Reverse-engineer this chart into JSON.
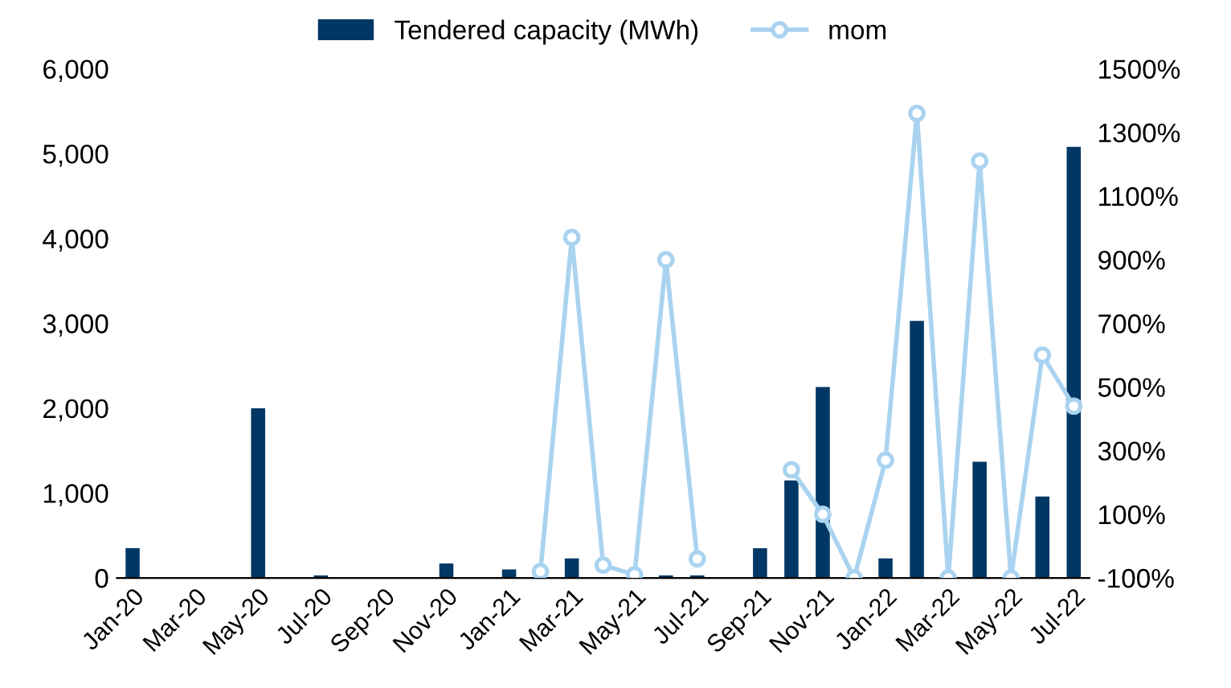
{
  "chart_data": {
    "type": "bar",
    "categories": [
      "Jan-20",
      null,
      "Mar-20",
      null,
      "May-20",
      null,
      "Jul-20",
      null,
      "Sep-20",
      null,
      "Nov-20",
      null,
      "Jan-21",
      null,
      "Mar-21",
      null,
      "May-21",
      null,
      "Jul-21",
      null,
      "Sep-21",
      null,
      "Nov-21",
      null,
      "Jan-22",
      null,
      "Mar-22",
      null,
      "May-22",
      null,
      "Jul-22"
    ],
    "series": [
      {
        "name": "Tendered capacity (MWh)",
        "color": "#003764",
        "values": [
          350,
          0,
          0,
          0,
          2000,
          0,
          30,
          0,
          0,
          0,
          170,
          0,
          100,
          0,
          230,
          0,
          0,
          30,
          30,
          0,
          350,
          1150,
          2250,
          0,
          230,
          3030,
          0,
          1370,
          0,
          960,
          5080
        ]
      },
      {
        "name": "mom",
        "type": "line",
        "axis": "y2",
        "color": "#a9d3f0",
        "marker": "circle",
        "values": [
          null,
          null,
          null,
          null,
          null,
          null,
          null,
          null,
          null,
          null,
          null,
          null,
          null,
          -80,
          970,
          -60,
          -90,
          900,
          -40,
          null,
          null,
          240,
          100,
          -100,
          270,
          1360,
          -100,
          1210,
          -100,
          600,
          440
        ]
      }
    ],
    "ylim": [
      0,
      6000
    ],
    "yticks": [
      0,
      {
        "value": 1000,
        "label": "1,000"
      },
      {
        "value": 2000,
        "label": "2,000"
      },
      {
        "value": 3000,
        "label": "3,000"
      },
      {
        "value": 4000,
        "label": "4,000"
      },
      {
        "value": 5000,
        "label": "5,000"
      },
      {
        "value": 6000,
        "label": "6,000"
      }
    ],
    "y2lim": [
      -100,
      1500
    ],
    "y2ticks": [
      {
        "value": -100,
        "label": "-100%"
      },
      {
        "value": 100,
        "label": "100%"
      },
      {
        "value": 300,
        "label": "300%"
      },
      {
        "value": 500,
        "label": "500%"
      },
      {
        "value": 700,
        "label": "700%"
      },
      {
        "value": 900,
        "label": "900%"
      },
      {
        "value": 1100,
        "label": "1100%"
      },
      {
        "value": 1300,
        "label": "1300%"
      },
      {
        "value": 1500,
        "label": "1500%"
      }
    ],
    "grid": false,
    "legend": "top"
  }
}
